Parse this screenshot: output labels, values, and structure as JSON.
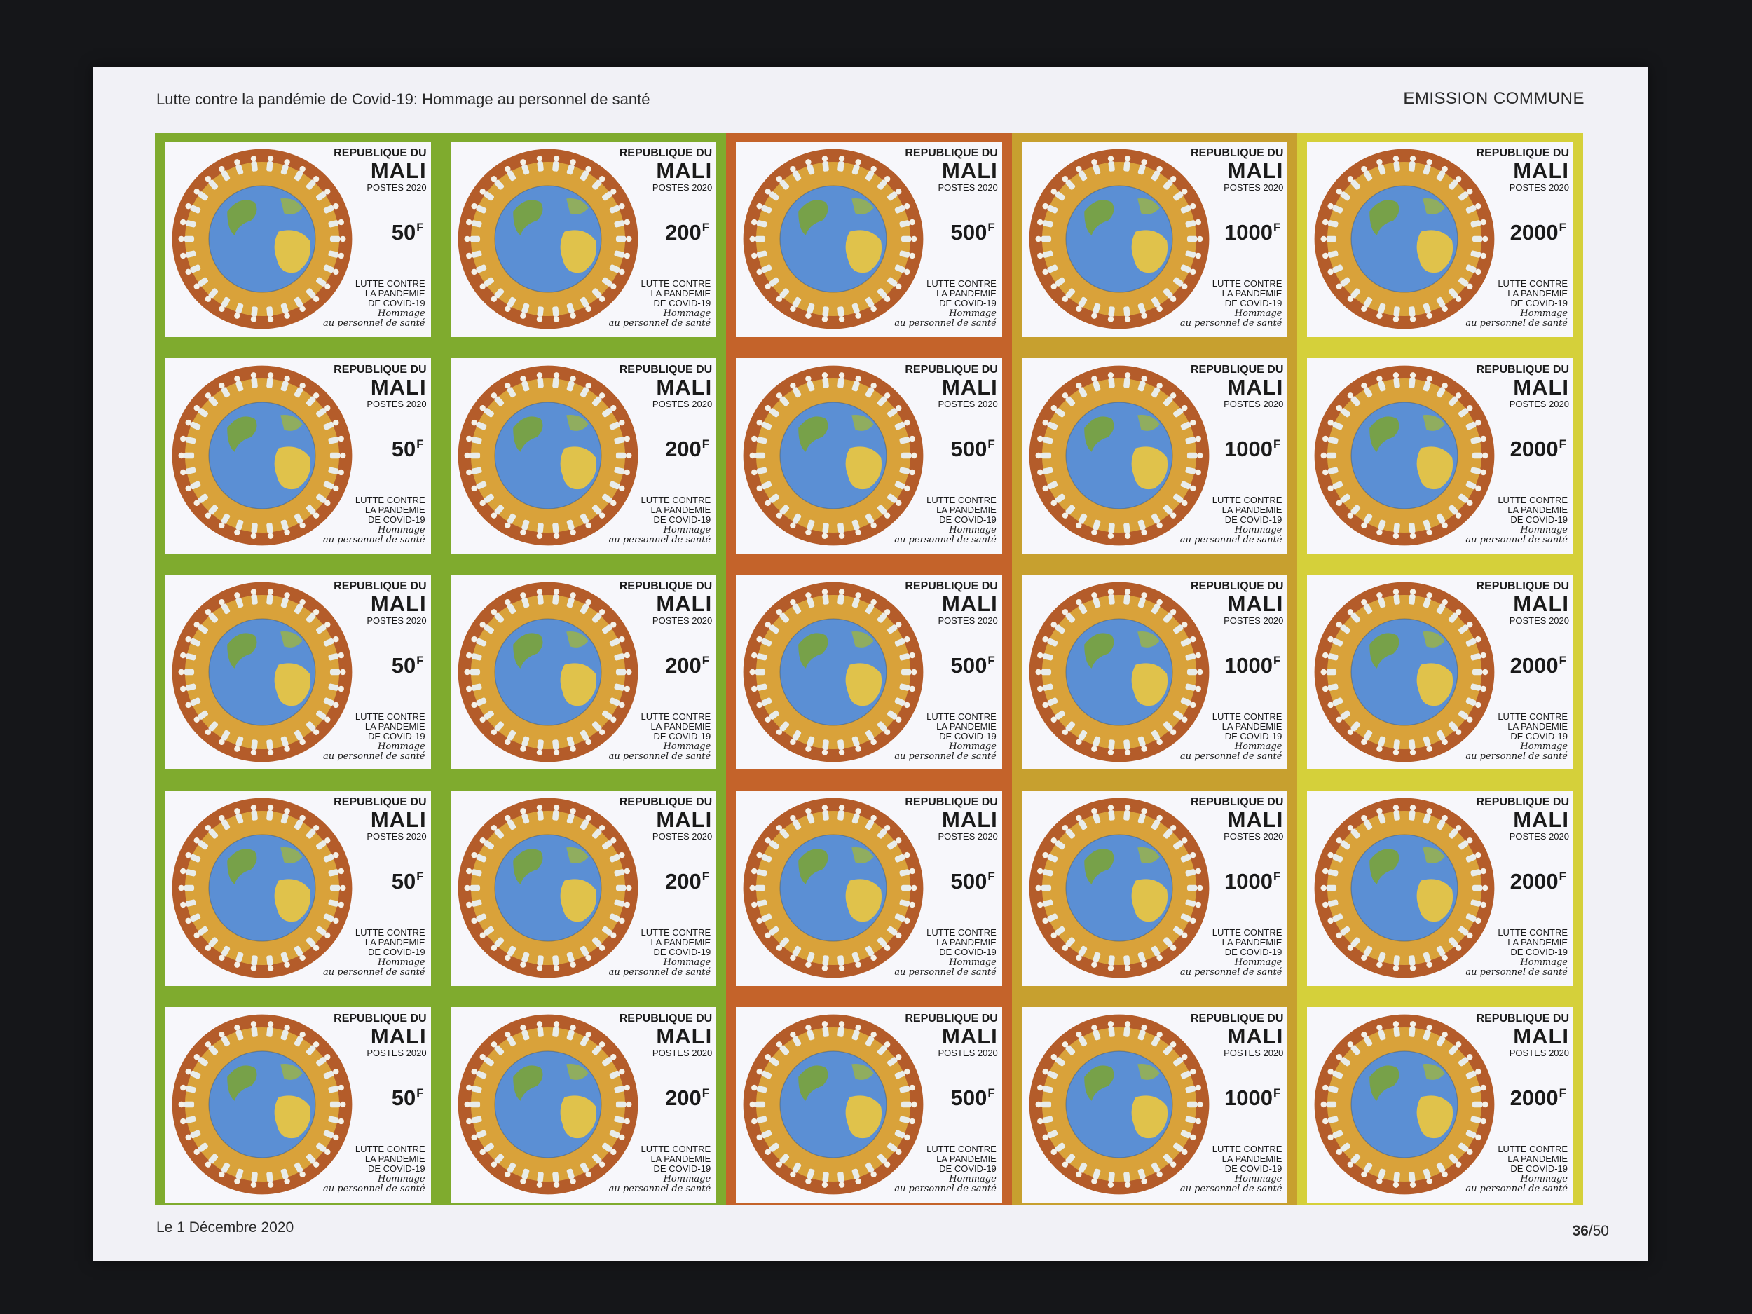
{
  "sheet": {
    "title": "Lutte contre la pandémie de Covid-19: Hommage au personnel de santé",
    "emission": "EMISSION COMMUNE",
    "date": "Le 1 Décembre 2020",
    "sheet_number": "36",
    "sheet_total": "/50"
  },
  "stamp_text": {
    "country_line1": "REPUBLIQUE DU",
    "country_line2": "MALI",
    "year": "POSTES 2020",
    "lutte_1": "LUTTE CONTRE",
    "lutte_2": "LA PANDEMIE",
    "lutte_3": "DE COVID-19",
    "hommage_1": "Hommage",
    "hommage_2": "au personnel de santé",
    "currency": "F"
  },
  "columns": [
    {
      "value": "50",
      "color": "#7fab2e"
    },
    {
      "value": "200",
      "color": "#7fab2e"
    },
    {
      "value": "500",
      "color": "#c4632a"
    },
    {
      "value": "1000",
      "color": "#c7a02f"
    },
    {
      "value": "2000",
      "color": "#d5d03a"
    }
  ],
  "colors": {
    "sheet": "#f1f1f6",
    "ring": "#b45c2a",
    "ring_inner": "#d9a23a",
    "ocean": "#5b8fd4",
    "land": "#e0c24b"
  }
}
